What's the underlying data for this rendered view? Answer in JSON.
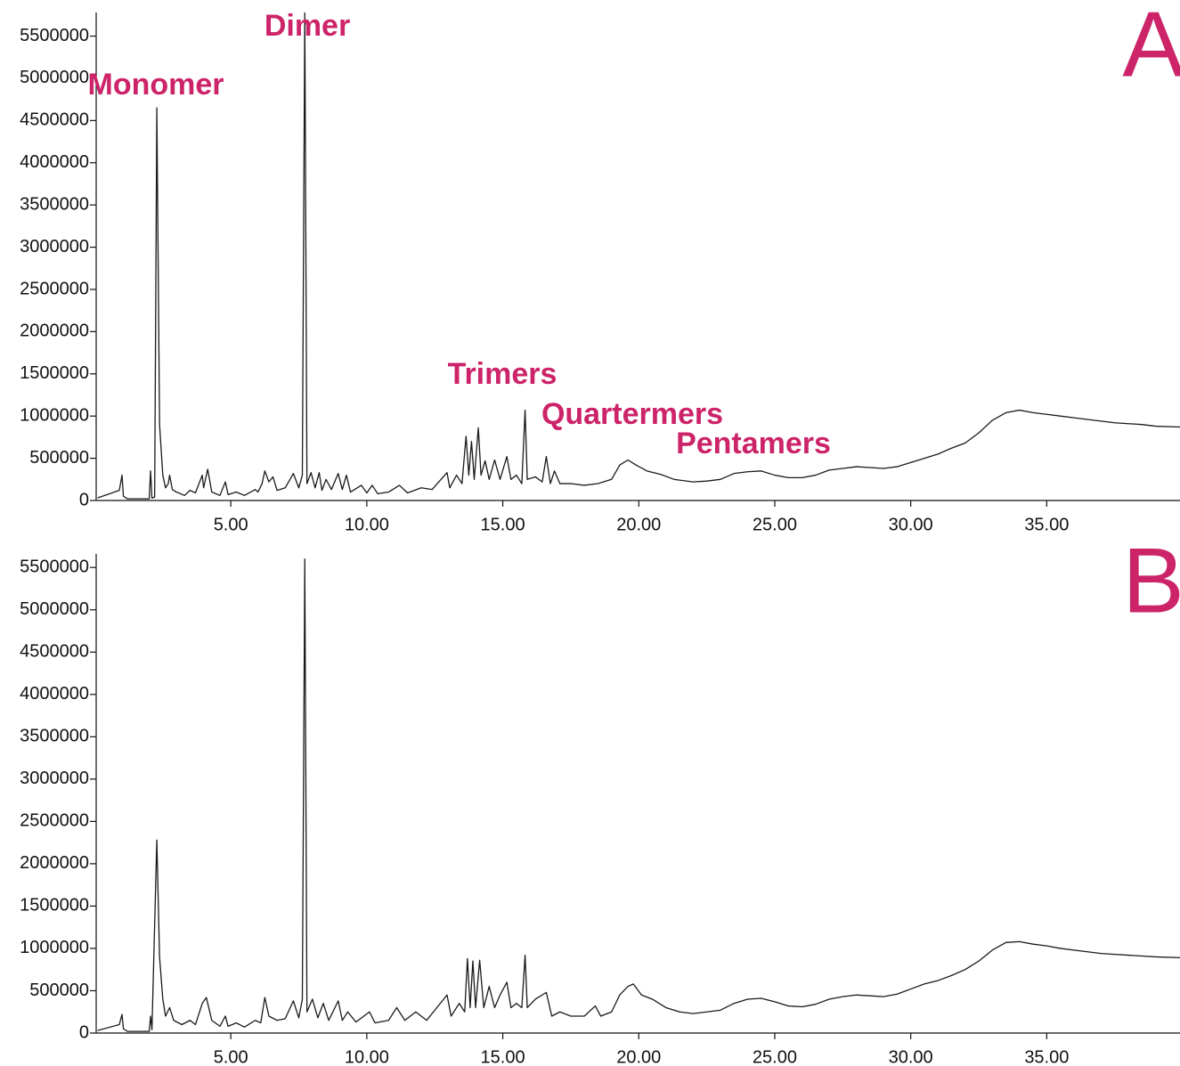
{
  "chart_data": [
    {
      "type": "line",
      "label": "A",
      "annotations": [
        "Monomer",
        "Dimer",
        "Trimers",
        "Quartermers",
        "Pentamers"
      ],
      "annotation_color": "#cc2369",
      "color": "#1a1a1a",
      "xlim": [
        0.05,
        39.9
      ],
      "xticks": [
        {
          "value": 5,
          "label": "5.00"
        },
        {
          "value": 10,
          "label": "10.00"
        },
        {
          "value": 15,
          "label": "15.00"
        },
        {
          "value": 20,
          "label": "20.00"
        },
        {
          "value": 25,
          "label": "25.00"
        },
        {
          "value": 30,
          "label": "30.00"
        },
        {
          "value": 35,
          "label": "35.00"
        }
      ],
      "ylim": [
        0,
        5780000
      ],
      "yticks": [
        0,
        500000,
        1000000,
        1500000,
        2000000,
        2500000,
        3000000,
        3500000,
        4000000,
        4500000,
        5000000,
        5500000
      ],
      "x": [
        0.1,
        0.9,
        1.0,
        1.05,
        1.2,
        2.0,
        2.05,
        2.1,
        2.2,
        2.28,
        2.38,
        2.5,
        2.6,
        2.7,
        2.75,
        2.85,
        3.0,
        3.3,
        3.5,
        3.7,
        3.95,
        4.0,
        4.15,
        4.3,
        4.6,
        4.8,
        4.9,
        5.2,
        5.5,
        5.9,
        6.0,
        6.15,
        6.25,
        6.4,
        6.55,
        6.7,
        7.0,
        7.3,
        7.5,
        7.63,
        7.72,
        7.8,
        7.95,
        8.1,
        8.25,
        8.35,
        8.5,
        8.7,
        8.95,
        9.1,
        9.25,
        9.4,
        9.8,
        10.0,
        10.2,
        10.4,
        10.8,
        11.2,
        11.5,
        12.0,
        12.4,
        12.95,
        13.05,
        13.3,
        13.5,
        13.65,
        13.75,
        13.85,
        13.95,
        14.1,
        14.2,
        14.35,
        14.5,
        14.7,
        14.9,
        15.15,
        15.3,
        15.5,
        15.7,
        15.82,
        15.9,
        16.2,
        16.45,
        16.6,
        16.75,
        16.9,
        17.1,
        17.5,
        18.0,
        18.5,
        19.0,
        19.3,
        19.6,
        19.9,
        20.3,
        20.8,
        21.3,
        22.0,
        22.5,
        23.0,
        23.5,
        24.0,
        24.5,
        25.0,
        25.5,
        26.0,
        26.5,
        27.0,
        27.5,
        28.0,
        28.5,
        29.0,
        29.5,
        30.0,
        30.5,
        31.0,
        31.5,
        32.0,
        32.5,
        33.0,
        33.5,
        34.0,
        34.5,
        35.0,
        35.5,
        36.0,
        36.5,
        37.0,
        37.5,
        38.0,
        38.5,
        39.0,
        39.9
      ],
      "values": [
        30000,
        120000,
        300000,
        50000,
        20000,
        20000,
        350000,
        30000,
        40000,
        4650000,
        900000,
        300000,
        150000,
        200000,
        300000,
        130000,
        100000,
        60000,
        120000,
        90000,
        300000,
        150000,
        370000,
        100000,
        60000,
        220000,
        70000,
        100000,
        60000,
        130000,
        100000,
        200000,
        350000,
        220000,
        280000,
        120000,
        150000,
        320000,
        150000,
        300000,
        5780000,
        200000,
        330000,
        150000,
        330000,
        120000,
        250000,
        130000,
        320000,
        130000,
        300000,
        100000,
        180000,
        90000,
        180000,
        80000,
        100000,
        180000,
        90000,
        150000,
        130000,
        330000,
        150000,
        300000,
        200000,
        760000,
        300000,
        700000,
        250000,
        860000,
        300000,
        470000,
        250000,
        480000,
        250000,
        520000,
        250000,
        300000,
        200000,
        1070000,
        250000,
        280000,
        220000,
        520000,
        200000,
        350000,
        200000,
        200000,
        180000,
        200000,
        250000,
        420000,
        480000,
        420000,
        350000,
        310000,
        250000,
        220000,
        230000,
        250000,
        320000,
        340000,
        350000,
        300000,
        270000,
        270000,
        300000,
        360000,
        380000,
        400000,
        390000,
        380000,
        400000,
        450000,
        500000,
        550000,
        620000,
        680000,
        800000,
        950000,
        1040000,
        1070000,
        1040000,
        1020000,
        1000000,
        980000,
        960000,
        940000,
        920000,
        910000,
        900000,
        880000,
        870000
      ]
    },
    {
      "type": "line",
      "label": "B",
      "annotation_color": "#cc2369",
      "color": "#1a1a1a",
      "xlim": [
        0.05,
        39.9
      ],
      "xticks": [
        {
          "value": 5,
          "label": "5.00"
        },
        {
          "value": 10,
          "label": "10.00"
        },
        {
          "value": 15,
          "label": "15.00"
        },
        {
          "value": 20,
          "label": "20.00"
        },
        {
          "value": 25,
          "label": "25.00"
        },
        {
          "value": 30,
          "label": "30.00"
        },
        {
          "value": 35,
          "label": "35.00"
        }
      ],
      "ylim": [
        0,
        5660000
      ],
      "yticks": [
        0,
        500000,
        1000000,
        1500000,
        2000000,
        2500000,
        3000000,
        3500000,
        4000000,
        4500000,
        5000000,
        5500000
      ],
      "x": [
        0.1,
        0.9,
        1.0,
        1.05,
        1.2,
        2.0,
        2.05,
        2.1,
        2.28,
        2.38,
        2.5,
        2.6,
        2.75,
        2.9,
        3.2,
        3.5,
        3.7,
        3.95,
        4.1,
        4.3,
        4.6,
        4.8,
        4.9,
        5.2,
        5.5,
        5.9,
        6.1,
        6.25,
        6.4,
        6.7,
        7.0,
        7.3,
        7.5,
        7.63,
        7.72,
        7.8,
        8.0,
        8.2,
        8.4,
        8.6,
        8.95,
        9.1,
        9.3,
        9.6,
        10.1,
        10.3,
        10.8,
        11.1,
        11.4,
        11.8,
        12.2,
        12.95,
        13.1,
        13.4,
        13.6,
        13.7,
        13.8,
        13.9,
        14.0,
        14.15,
        14.3,
        14.5,
        14.7,
        14.9,
        15.15,
        15.3,
        15.5,
        15.7,
        15.82,
        15.9,
        16.2,
        16.6,
        16.8,
        17.1,
        17.5,
        18.0,
        18.4,
        18.6,
        19.0,
        19.3,
        19.6,
        19.8,
        20.1,
        20.5,
        21.0,
        21.5,
        22.0,
        22.5,
        23.0,
        23.5,
        24.0,
        24.5,
        25.0,
        25.5,
        26.0,
        26.5,
        27.0,
        27.5,
        28.0,
        28.5,
        29.0,
        29.5,
        30.0,
        30.5,
        31.0,
        31.5,
        32.0,
        32.5,
        33.0,
        33.5,
        34.0,
        34.5,
        35.0,
        35.5,
        36.0,
        36.5,
        37.0,
        37.5,
        38.0,
        38.5,
        39.0,
        39.9
      ],
      "values": [
        30000,
        100000,
        220000,
        50000,
        20000,
        20000,
        200000,
        40000,
        2280000,
        900000,
        400000,
        200000,
        300000,
        150000,
        100000,
        150000,
        100000,
        350000,
        420000,
        150000,
        80000,
        200000,
        80000,
        120000,
        70000,
        150000,
        120000,
        420000,
        200000,
        150000,
        170000,
        380000,
        180000,
        400000,
        5600000,
        250000,
        400000,
        180000,
        350000,
        150000,
        380000,
        150000,
        250000,
        130000,
        250000,
        120000,
        150000,
        300000,
        150000,
        250000,
        150000,
        450000,
        200000,
        350000,
        250000,
        880000,
        300000,
        850000,
        300000,
        860000,
        300000,
        550000,
        300000,
        450000,
        600000,
        300000,
        350000,
        300000,
        920000,
        300000,
        400000,
        480000,
        200000,
        250000,
        200000,
        200000,
        320000,
        200000,
        250000,
        450000,
        550000,
        580000,
        450000,
        400000,
        300000,
        250000,
        230000,
        250000,
        270000,
        350000,
        400000,
        410000,
        370000,
        320000,
        310000,
        340000,
        400000,
        430000,
        450000,
        440000,
        430000,
        460000,
        520000,
        580000,
        620000,
        680000,
        750000,
        850000,
        980000,
        1070000,
        1080000,
        1050000,
        1030000,
        1000000,
        980000,
        960000,
        940000,
        930000,
        920000,
        910000,
        900000,
        890000
      ]
    }
  ]
}
